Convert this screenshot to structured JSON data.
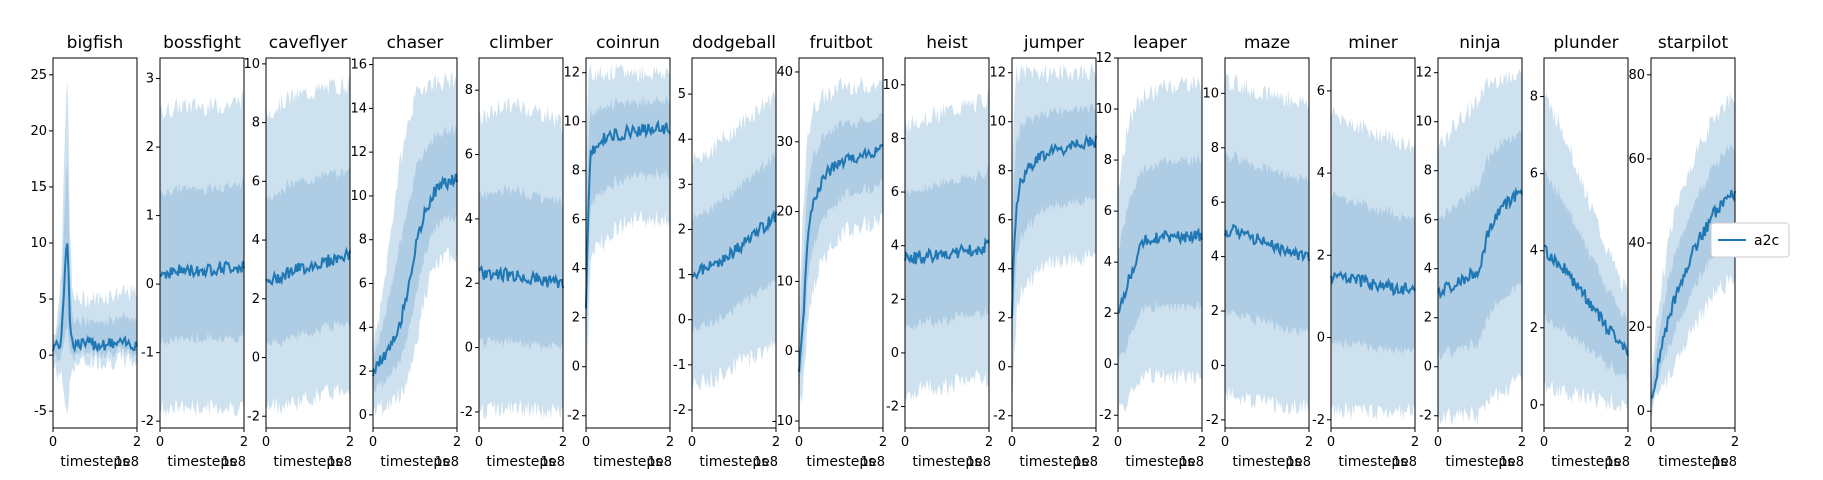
{
  "legend": {
    "label": "a2c",
    "color": "#1f77b4"
  },
  "x_axis": {
    "label": "timesteps",
    "offset_label": "1e8",
    "ticks": [
      "0",
      "2"
    ]
  },
  "chart_data": [
    {
      "type": "line",
      "title": "bigfish",
      "xlabel": "timesteps",
      "xlim": [
        0,
        2
      ],
      "ylim": [
        -6.5,
        26.5
      ],
      "yticks": [
        -5,
        0,
        5,
        10,
        15,
        20,
        25
      ],
      "series": [
        {
          "name": "a2c",
          "x": [
            0,
            0.1,
            0.2,
            0.25,
            0.3,
            0.35,
            0.4,
            0.45,
            0.5,
            1.0,
            1.5,
            2.0
          ],
          "mean": [
            0.8,
            0.9,
            1.2,
            4.5,
            9.5,
            10.5,
            3.5,
            1.2,
            1.0,
            1.0,
            1.0,
            1.0
          ],
          "lower": [
            -1,
            -1.5,
            -2,
            -3,
            -4.5,
            -5,
            -3,
            -1,
            -0.8,
            -0.5,
            -0.5,
            -0.5
          ],
          "upper": [
            2,
            3,
            8,
            16,
            21,
            25,
            12,
            6,
            5,
            5,
            5.5,
            5.5
          ]
        }
      ]
    },
    {
      "type": "line",
      "title": "bossfight",
      "xlabel": "timesteps",
      "xlim": [
        0,
        2
      ],
      "ylim": [
        -2.1,
        3.3
      ],
      "yticks": [
        -2,
        -1,
        0,
        1,
        2,
        3
      ],
      "series": [
        {
          "name": "a2c",
          "x": [
            0,
            0.5,
            1.0,
            1.5,
            2.0
          ],
          "mean": [
            0.15,
            0.2,
            0.2,
            0.25,
            0.25
          ],
          "lower": [
            -1.8,
            -1.8,
            -1.8,
            -1.8,
            -1.8
          ],
          "upper": [
            2.5,
            2.6,
            2.6,
            2.6,
            2.7
          ]
        }
      ]
    },
    {
      "type": "line",
      "title": "caveflyer",
      "xlabel": "timesteps",
      "xlim": [
        0,
        2
      ],
      "ylim": [
        -2.4,
        10.2
      ],
      "yticks": [
        -2,
        0,
        2,
        4,
        6,
        8,
        10
      ],
      "series": [
        {
          "name": "a2c",
          "x": [
            0,
            0.5,
            1.0,
            1.5,
            2.0
          ],
          "mean": [
            2.5,
            2.9,
            3.1,
            3.3,
            3.5
          ],
          "lower": [
            -1.7,
            -1.6,
            -1.4,
            -1.2,
            -1.0
          ],
          "upper": [
            8.3,
            8.8,
            9.0,
            9.2,
            9.3
          ]
        }
      ]
    },
    {
      "type": "line",
      "title": "chaser",
      "xlabel": "timesteps",
      "xlim": [
        0,
        2
      ],
      "ylim": [
        -0.6,
        16.3
      ],
      "yticks": [
        0,
        2,
        4,
        6,
        8,
        10,
        12,
        14,
        16
      ],
      "series": [
        {
          "name": "a2c",
          "x": [
            0,
            0.2,
            0.4,
            0.6,
            0.8,
            1.0,
            1.2,
            1.4,
            1.6,
            2.0
          ],
          "mean": [
            2.0,
            2.5,
            3.0,
            3.8,
            5.5,
            7.5,
            9.0,
            10.0,
            10.5,
            10.8
          ],
          "lower": [
            0.2,
            0.3,
            0.5,
            0.8,
            1.5,
            3.0,
            5.0,
            6.5,
            7.0,
            7.5
          ],
          "upper": [
            3.0,
            5.0,
            8.0,
            11.0,
            13.0,
            14.5,
            15.0,
            15.2,
            15.2,
            15.3
          ]
        }
      ]
    },
    {
      "type": "line",
      "title": "climber",
      "xlabel": "timesteps",
      "xlim": [
        0,
        2
      ],
      "ylim": [
        -2.5,
        9.0
      ],
      "yticks": [
        -2,
        0,
        2,
        4,
        6,
        8
      ],
      "series": [
        {
          "name": "a2c",
          "x": [
            0,
            0.5,
            1.0,
            1.5,
            2.0
          ],
          "mean": [
            2.3,
            2.3,
            2.2,
            2.1,
            2.0
          ],
          "lower": [
            -2.0,
            -1.9,
            -1.9,
            -2.0,
            -2.0
          ],
          "upper": [
            7.0,
            7.5,
            7.5,
            7.3,
            7.0
          ]
        }
      ]
    },
    {
      "type": "line",
      "title": "coinrun",
      "xlabel": "timesteps",
      "xlim": [
        0,
        2
      ],
      "ylim": [
        -2.5,
        12.6
      ],
      "yticks": [
        -2,
        0,
        2,
        4,
        6,
        8,
        10,
        12
      ],
      "series": [
        {
          "name": "a2c",
          "x": [
            0,
            0.05,
            0.1,
            0.15,
            0.3,
            0.6,
            1.0,
            1.5,
            2.0
          ],
          "mean": [
            2.5,
            6.0,
            8.5,
            8.8,
            9.2,
            9.4,
            9.6,
            9.7,
            9.7
          ],
          "lower": [
            -2.0,
            1.0,
            4.0,
            4.5,
            5.0,
            5.5,
            6.0,
            6.0,
            6.0
          ],
          "upper": [
            8.0,
            11.5,
            12.0,
            12.0,
            12.0,
            12.0,
            12.0,
            12.0,
            12.0
          ]
        }
      ]
    },
    {
      "type": "line",
      "title": "dodgeball",
      "xlabel": "timesteps",
      "xlim": [
        0,
        2
      ],
      "ylim": [
        -2.4,
        5.8
      ],
      "yticks": [
        -2,
        -1,
        0,
        1,
        2,
        3,
        4,
        5
      ],
      "series": [
        {
          "name": "a2c",
          "x": [
            0,
            0.5,
            1.0,
            1.5,
            2.0
          ],
          "mean": [
            1.0,
            1.2,
            1.5,
            1.9,
            2.3
          ],
          "lower": [
            -1.5,
            -1.3,
            -1.0,
            -0.8,
            -0.5
          ],
          "upper": [
            3.5,
            3.8,
            4.2,
            4.6,
            5.0
          ]
        }
      ]
    },
    {
      "type": "line",
      "title": "fruitbot",
      "xlabel": "timesteps",
      "xlim": [
        0,
        2
      ],
      "ylim": [
        -11,
        42
      ],
      "yticks": [
        -10,
        0,
        10,
        20,
        30,
        40
      ],
      "series": [
        {
          "name": "a2c",
          "x": [
            0,
            0.1,
            0.2,
            0.3,
            0.5,
            0.75,
            1.0,
            1.5,
            2.0
          ],
          "mean": [
            -3,
            5,
            15,
            20,
            24,
            26,
            27,
            28,
            29
          ],
          "lower": [
            -8,
            -5,
            3,
            8,
            12,
            15,
            17,
            18,
            19
          ],
          "upper": [
            5,
            20,
            30,
            34,
            36,
            37,
            38,
            38,
            38
          ]
        }
      ]
    },
    {
      "type": "line",
      "title": "heist",
      "xlabel": "timesteps",
      "xlim": [
        0,
        2
      ],
      "ylim": [
        -2.8,
        11.0
      ],
      "yticks": [
        -2,
        0,
        2,
        4,
        6,
        8,
        10
      ],
      "series": [
        {
          "name": "a2c",
          "x": [
            0,
            0.5,
            1.0,
            1.5,
            2.0
          ],
          "mean": [
            3.5,
            3.6,
            3.7,
            3.8,
            4.0
          ],
          "lower": [
            -1.5,
            -1.3,
            -1.2,
            -1.0,
            -1.0
          ],
          "upper": [
            8.5,
            8.8,
            9.0,
            9.2,
            9.5
          ]
        }
      ]
    },
    {
      "type": "line",
      "title": "jumper",
      "xlabel": "timesteps",
      "xlim": [
        0,
        2
      ],
      "ylim": [
        -2.5,
        12.6
      ],
      "yticks": [
        -2,
        0,
        2,
        4,
        6,
        8,
        10,
        12
      ],
      "series": [
        {
          "name": "a2c",
          "x": [
            0,
            0.05,
            0.1,
            0.2,
            0.4,
            0.7,
            1.0,
            1.5,
            2.0
          ],
          "mean": [
            2.0,
            5.0,
            6.5,
            7.5,
            8.2,
            8.6,
            8.8,
            9.0,
            9.2
          ],
          "lower": [
            -2.0,
            0.0,
            2.0,
            3.0,
            3.5,
            4.0,
            4.2,
            4.4,
            4.5
          ],
          "upper": [
            7.0,
            11.0,
            12.0,
            12.0,
            12.0,
            12.0,
            12.0,
            12.0,
            12.0
          ]
        }
      ]
    },
    {
      "type": "line",
      "title": "leaper",
      "xlabel": "timesteps",
      "xlim": [
        0,
        2
      ],
      "ylim": [
        -2.5,
        12.0
      ],
      "yticks": [
        -2,
        0,
        2,
        4,
        6,
        8,
        10,
        12
      ],
      "series": [
        {
          "name": "a2c",
          "x": [
            0,
            0.2,
            0.4,
            0.6,
            1.0,
            1.5,
            2.0
          ],
          "mean": [
            2.0,
            3.0,
            4.0,
            4.8,
            5.0,
            5.0,
            5.0
          ],
          "lower": [
            -2.0,
            -1.5,
            -1.0,
            -0.5,
            -0.5,
            -0.5,
            -0.5
          ],
          "upper": [
            7.0,
            9.0,
            10.0,
            10.5,
            10.8,
            11.0,
            11.0
          ]
        }
      ]
    },
    {
      "type": "line",
      "title": "maze",
      "xlabel": "timesteps",
      "xlim": [
        0,
        2
      ],
      "ylim": [
        -2.3,
        11.3
      ],
      "yticks": [
        -2,
        0,
        2,
        4,
        6,
        8,
        10
      ],
      "series": [
        {
          "name": "a2c",
          "x": [
            0,
            0.5,
            1.0,
            1.5,
            2.0
          ],
          "mean": [
            5.0,
            4.8,
            4.5,
            4.2,
            4.0
          ],
          "lower": [
            -1.0,
            -1.2,
            -1.4,
            -1.5,
            -1.5
          ],
          "upper": [
            10.5,
            10.2,
            10.0,
            9.8,
            9.6
          ]
        }
      ]
    },
    {
      "type": "line",
      "title": "miner",
      "xlabel": "timesteps",
      "xlim": [
        0,
        2
      ],
      "ylim": [
        -2.2,
        6.8
      ],
      "yticks": [
        -2,
        0,
        2,
        4,
        6
      ],
      "series": [
        {
          "name": "a2c",
          "x": [
            0,
            0.5,
            1.0,
            1.5,
            2.0
          ],
          "mean": [
            1.5,
            1.4,
            1.3,
            1.2,
            1.2
          ],
          "lower": [
            -1.8,
            -1.8,
            -1.8,
            -1.8,
            -1.8
          ],
          "upper": [
            5.5,
            5.2,
            5.0,
            4.8,
            4.6
          ]
        }
      ]
    },
    {
      "type": "line",
      "title": "ninja",
      "xlabel": "timesteps",
      "xlim": [
        0,
        2
      ],
      "ylim": [
        -2.5,
        12.6
      ],
      "yticks": [
        -2,
        0,
        2,
        4,
        6,
        8,
        10,
        12
      ],
      "series": [
        {
          "name": "a2c",
          "x": [
            0,
            0.5,
            1.0,
            1.2,
            1.5,
            2.0
          ],
          "mean": [
            3.0,
            3.5,
            4.0,
            5.5,
            6.5,
            7.2
          ],
          "lower": [
            -2.0,
            -2.0,
            -2.0,
            -1.5,
            -1.0,
            -0.5
          ],
          "upper": [
            9.0,
            10.0,
            11.0,
            11.5,
            11.8,
            12.0
          ]
        }
      ]
    },
    {
      "type": "line",
      "title": "plunder",
      "xlabel": "timesteps",
      "xlim": [
        0,
        2
      ],
      "ylim": [
        -0.6,
        9.0
      ],
      "yticks": [
        0,
        2,
        4,
        6,
        8
      ],
      "series": [
        {
          "name": "a2c",
          "x": [
            0,
            0.5,
            1.0,
            1.5,
            2.0
          ],
          "mean": [
            4.0,
            3.5,
            2.8,
            2.0,
            1.3
          ],
          "lower": [
            0.5,
            0.3,
            0.2,
            0.1,
            0.0
          ],
          "upper": [
            8.0,
            7.0,
            5.5,
            4.0,
            2.8
          ]
        }
      ]
    },
    {
      "type": "line",
      "title": "starpilot",
      "xlabel": "timesteps",
      "xlim": [
        0,
        2
      ],
      "ylim": [
        -4,
        84
      ],
      "yticks": [
        0,
        20,
        40,
        60,
        80
      ],
      "series": [
        {
          "name": "a2c",
          "x": [
            0,
            0.25,
            0.5,
            1.0,
            1.5,
            2.0
          ],
          "mean": [
            2,
            15,
            25,
            38,
            47,
            52
          ],
          "lower": [
            0,
            5,
            10,
            20,
            28,
            32
          ],
          "upper": [
            10,
            30,
            45,
            60,
            70,
            75
          ]
        }
      ]
    }
  ]
}
